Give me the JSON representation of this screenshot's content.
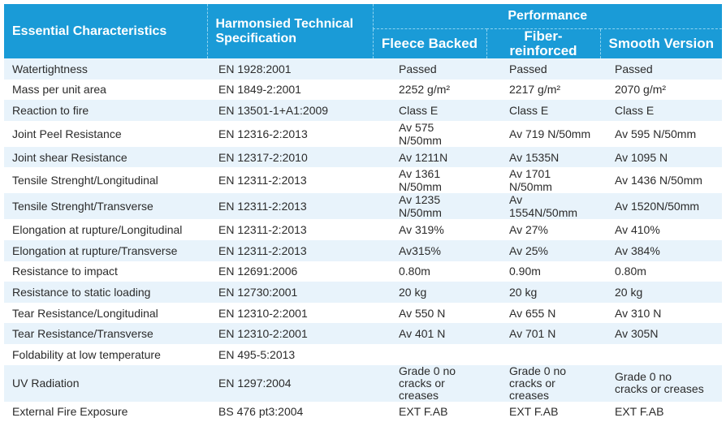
{
  "headers": {
    "essential": "Essential Characteristics",
    "technical": "Harmonsied Technical Specification",
    "performance": "Performance",
    "fleece": "Fleece Backed",
    "fiber": "Fiber-reinforced",
    "smooth": "Smooth Version"
  },
  "colors": {
    "header_bg": "#1a9bd7",
    "stripe": "#e8f3fb"
  },
  "rows": [
    {
      "characteristic": "Watertightness",
      "spec": "EN 1928:2001",
      "fleece": "Passed",
      "fiber": "Passed",
      "smooth": "Passed"
    },
    {
      "characteristic": "Mass per unit area",
      "spec": "EN 1849-2:2001",
      "fleece": "2252 g/m²",
      "fiber": "2217 g/m²",
      "smooth": "2070 g/m²"
    },
    {
      "characteristic": "Reaction to fire",
      "spec": "EN 13501-1+A1:2009",
      "fleece": "Class E",
      "fiber": "Class E",
      "smooth": "Class E"
    },
    {
      "characteristic": "Joint Peel Resistance",
      "spec": "EN 12316-2:2013",
      "fleece": "Av 575 N/50mm",
      "fiber": "Av 719 N/50mm",
      "smooth": "Av 595 N/50mm"
    },
    {
      "characteristic": "Joint shear Resistance",
      "spec": "EN 12317-2:2010",
      "fleece": "Av 1211N",
      "fiber": "Av 1535N",
      "smooth": "Av 1095 N"
    },
    {
      "characteristic": "Tensile Strenght/Longitudinal",
      "spec": "EN 12311-2:2013",
      "fleece": "Av 1361 N/50mm",
      "fiber": "Av 1701 N/50mm",
      "smooth": "Av 1436 N/50mm"
    },
    {
      "characteristic": "Tensile Strenght/Transverse",
      "spec": "EN 12311-2:2013",
      "fleece": "Av 1235 N/50mm",
      "fiber": "Av 1554N/50mm",
      "smooth": "Av 1520N/50mm"
    },
    {
      "characteristic": "Elongation at rupture/Longitudinal",
      "spec": "EN 12311-2:2013",
      "fleece": "Av 319%",
      "fiber": "Av 27%",
      "smooth": "Av 410%"
    },
    {
      "characteristic": "Elongation at rupture/Transverse",
      "spec": "EN 12311-2:2013",
      "fleece": "Av315%",
      "fiber": "Av 25%",
      "smooth": "Av 384%"
    },
    {
      "characteristic": "Resistance to impact",
      "spec": "EN 12691:2006",
      "fleece": "0.80m",
      "fiber": "0.90m",
      "smooth": "0.80m"
    },
    {
      "characteristic": "Resistance to static loading",
      "spec": "EN 12730:2001",
      "fleece": "20 kg",
      "fiber": "20 kg",
      "smooth": "20 kg"
    },
    {
      "characteristic": "Tear Resistance/Longitudinal",
      "spec": "EN 12310-2:2001",
      "fleece": "Av 550 N",
      "fiber": "Av 655 N",
      "smooth": "Av 310 N"
    },
    {
      "characteristic": "Tear Resistance/Transverse",
      "spec": "EN 12310-2:2001",
      "fleece": "Av 401 N",
      "fiber": "Av 701 N",
      "smooth": "Av 305N"
    },
    {
      "characteristic": "Foldability at low temperature",
      "spec": "EN 495-5:2013",
      "fleece": "",
      "fiber": "",
      "smooth": ""
    },
    {
      "characteristic": "UV Radiation",
      "spec": "EN 1297:2004",
      "fleece": "Grade 0 no\ncracks or creases",
      "fiber": "Grade 0 no\ncracks or creases",
      "smooth": "Grade 0 no\ncracks or creases"
    },
    {
      "characteristic": "External Fire Exposure",
      "spec": "BS 476 pt3:2004",
      "fleece": "EXT F.AB",
      "fiber": "EXT F.AB",
      "smooth": "EXT F.AB"
    }
  ]
}
